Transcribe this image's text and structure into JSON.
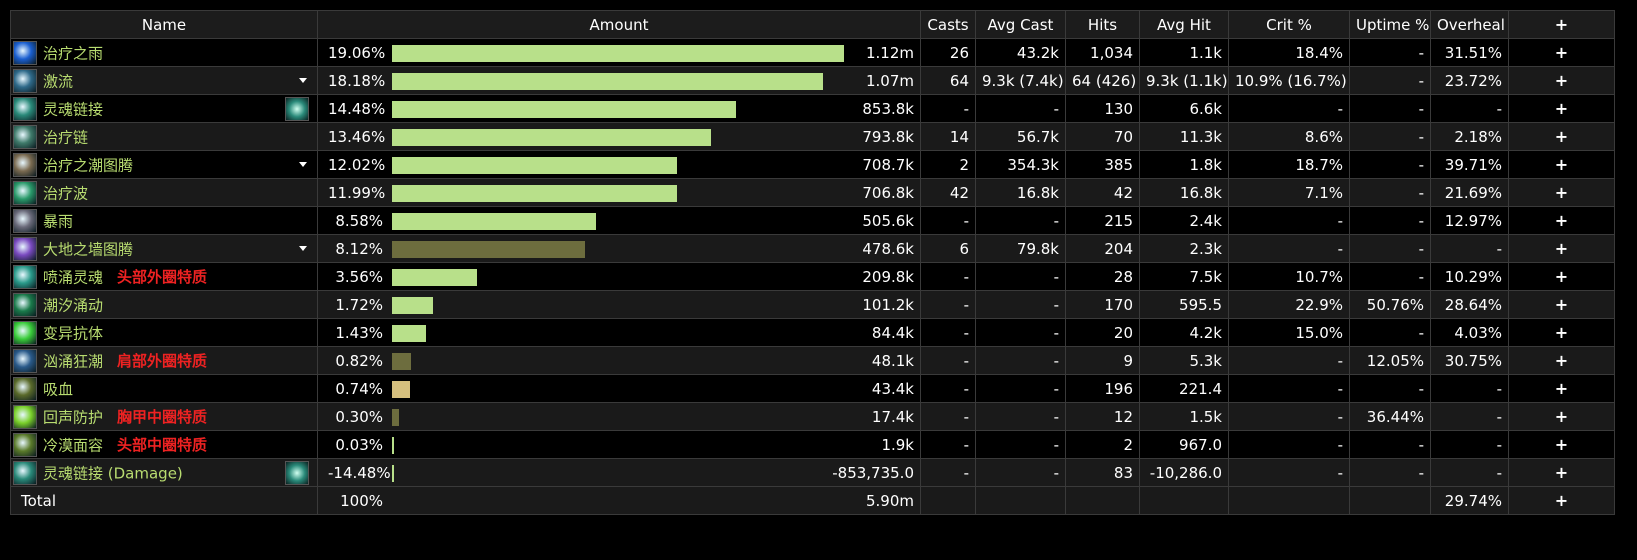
{
  "columns": {
    "name": "Name",
    "amount": "Amount",
    "casts": "Casts",
    "avg_cast": "Avg Cast",
    "hits": "Hits",
    "avg_hit": "Avg Hit",
    "crit": "Crit %",
    "uptime": "Uptime %",
    "overheal": "Overheal",
    "expand": "+"
  },
  "rows": [
    {
      "name": "治疗之雨",
      "tag": "",
      "caret": false,
      "extra_icon": false,
      "icon_color": "#1b5fd0",
      "pct": "19.06%",
      "bar_fraction": 1.0,
      "bar_color": "#b8e08a",
      "amount": "1.12m",
      "casts": "26",
      "avg_cast": "43.2k",
      "hits": "1,034",
      "avg_hit": "1.1k",
      "crit": "18.4%",
      "uptime": "-",
      "overheal": "31.51%",
      "expand": "+"
    },
    {
      "name": "激流",
      "tag": "",
      "caret": true,
      "extra_icon": false,
      "icon_color": "#2f6a8a",
      "pct": "18.18%",
      "bar_fraction": 0.954,
      "bar_color": "#b8e08a",
      "amount": "1.07m",
      "casts": "64",
      "avg_cast": "9.3k (7.4k)",
      "hits": "64 (426)",
      "avg_hit": "9.3k (1.1k)",
      "crit": "10.9% (16.7%)",
      "uptime": "-",
      "overheal": "23.72%",
      "expand": "+"
    },
    {
      "name": "灵魂链接",
      "tag": "",
      "caret": false,
      "extra_icon": true,
      "icon_color": "#2a8a7a",
      "pct": "14.48%",
      "bar_fraction": 0.76,
      "bar_color": "#b8e08a",
      "amount": "853.8k",
      "casts": "-",
      "avg_cast": "-",
      "hits": "130",
      "avg_hit": "6.6k",
      "crit": "-",
      "uptime": "-",
      "overheal": "-",
      "expand": "+"
    },
    {
      "name": "治疗链",
      "tag": "",
      "caret": false,
      "extra_icon": false,
      "icon_color": "#3f7a6a",
      "pct": "13.46%",
      "bar_fraction": 0.706,
      "bar_color": "#b8e08a",
      "amount": "793.8k",
      "casts": "14",
      "avg_cast": "56.7k",
      "hits": "70",
      "avg_hit": "11.3k",
      "crit": "8.6%",
      "uptime": "-",
      "overheal": "2.18%",
      "expand": "+"
    },
    {
      "name": "治疗之潮图腾",
      "tag": "",
      "caret": true,
      "extra_icon": false,
      "icon_color": "#7a6a50",
      "pct": "12.02%",
      "bar_fraction": 0.631,
      "bar_color": "#b8e08a",
      "amount": "708.7k",
      "casts": "2",
      "avg_cast": "354.3k",
      "hits": "385",
      "avg_hit": "1.8k",
      "crit": "18.7%",
      "uptime": "-",
      "overheal": "39.71%",
      "expand": "+"
    },
    {
      "name": "治疗波",
      "tag": "",
      "caret": false,
      "extra_icon": false,
      "icon_color": "#2a9a6a",
      "pct": "11.99%",
      "bar_fraction": 0.631,
      "bar_color": "#b8e08a",
      "amount": "706.8k",
      "casts": "42",
      "avg_cast": "16.8k",
      "hits": "42",
      "avg_hit": "16.8k",
      "crit": "7.1%",
      "uptime": "-",
      "overheal": "21.69%",
      "expand": "+"
    },
    {
      "name": "暴雨",
      "tag": "",
      "caret": false,
      "extra_icon": false,
      "icon_color": "#6a6a7a",
      "pct": "8.58%",
      "bar_fraction": 0.451,
      "bar_color": "#b8e08a",
      "amount": "505.6k",
      "casts": "-",
      "avg_cast": "-",
      "hits": "215",
      "avg_hit": "2.4k",
      "crit": "-",
      "uptime": "-",
      "overheal": "12.97%",
      "expand": "+"
    },
    {
      "name": "大地之墙图腾",
      "tag": "",
      "caret": true,
      "extra_icon": false,
      "icon_color": "#7a4ac0",
      "pct": "8.12%",
      "bar_fraction": 0.427,
      "bar_color": "#6d6d3e",
      "amount": "478.6k",
      "casts": "6",
      "avg_cast": "79.8k",
      "hits": "204",
      "avg_hit": "2.3k",
      "crit": "-",
      "uptime": "-",
      "overheal": "-",
      "expand": "+"
    },
    {
      "name": "喷涌灵魂",
      "tag": "头部外圈特质",
      "caret": false,
      "extra_icon": false,
      "icon_color": "#2a9a8a",
      "pct": "3.56%",
      "bar_fraction": 0.187,
      "bar_color": "#b8e08a",
      "amount": "209.8k",
      "casts": "-",
      "avg_cast": "-",
      "hits": "28",
      "avg_hit": "7.5k",
      "crit": "10.7%",
      "uptime": "-",
      "overheal": "10.29%",
      "expand": "+"
    },
    {
      "name": "潮汐涌动",
      "tag": "",
      "caret": false,
      "extra_icon": false,
      "icon_color": "#1a7a4a",
      "pct": "1.72%",
      "bar_fraction": 0.09,
      "bar_color": "#b8e08a",
      "amount": "101.2k",
      "casts": "-",
      "avg_cast": "-",
      "hits": "170",
      "avg_hit": "595.5",
      "crit": "22.9%",
      "uptime": "50.76%",
      "overheal": "28.64%",
      "expand": "+"
    },
    {
      "name": "变异抗体",
      "tag": "",
      "caret": false,
      "extra_icon": false,
      "icon_color": "#3acc3a",
      "pct": "1.43%",
      "bar_fraction": 0.075,
      "bar_color": "#b8e08a",
      "amount": "84.4k",
      "casts": "-",
      "avg_cast": "-",
      "hits": "20",
      "avg_hit": "4.2k",
      "crit": "15.0%",
      "uptime": "-",
      "overheal": "4.03%",
      "expand": "+"
    },
    {
      "name": "汹涌狂潮",
      "tag": "肩部外圈特质",
      "caret": false,
      "extra_icon": false,
      "icon_color": "#2a5a8a",
      "pct": "0.82%",
      "bar_fraction": 0.043,
      "bar_color": "#6d6d3e",
      "amount": "48.1k",
      "casts": "-",
      "avg_cast": "-",
      "hits": "9",
      "avg_hit": "5.3k",
      "crit": "-",
      "uptime": "12.05%",
      "overheal": "30.75%",
      "expand": "+"
    },
    {
      "name": "吸血",
      "tag": "",
      "caret": false,
      "extra_icon": false,
      "icon_color": "#5a6a2a",
      "pct": "0.74%",
      "bar_fraction": 0.039,
      "bar_color": "#d6c07e",
      "amount": "43.4k",
      "casts": "-",
      "avg_cast": "-",
      "hits": "196",
      "avg_hit": "221.4",
      "crit": "-",
      "uptime": "-",
      "overheal": "-",
      "expand": "+"
    },
    {
      "name": "回声防护",
      "tag": "胸甲中圈特质",
      "caret": false,
      "extra_icon": false,
      "icon_color": "#7ad02a",
      "pct": "0.30%",
      "bar_fraction": 0.016,
      "bar_color": "#6d6d3e",
      "amount": "17.4k",
      "casts": "-",
      "avg_cast": "-",
      "hits": "12",
      "avg_hit": "1.5k",
      "crit": "-",
      "uptime": "36.44%",
      "overheal": "-",
      "expand": "+"
    },
    {
      "name": "冷漠面容",
      "tag": "头部中圈特质",
      "caret": false,
      "extra_icon": false,
      "icon_color": "#5a7a2a",
      "pct": "0.03%",
      "bar_fraction": 0.002,
      "bar_color": "#b8e08a",
      "amount": "1.9k",
      "casts": "-",
      "avg_cast": "-",
      "hits": "2",
      "avg_hit": "967.0",
      "crit": "-",
      "uptime": "-",
      "overheal": "-",
      "expand": "+"
    },
    {
      "name": "灵魂链接 (Damage)",
      "tag": "",
      "caret": false,
      "extra_icon": true,
      "icon_color": "#2a8a7a",
      "pct": "-14.48%",
      "bar_fraction": 0.002,
      "bar_color": "#b8e08a",
      "amount": "-853,735.0",
      "casts": "-",
      "avg_cast": "-",
      "hits": "83",
      "avg_hit": "-10,286.0",
      "crit": "-",
      "uptime": "-",
      "overheal": "-",
      "expand": "+"
    }
  ],
  "total": {
    "name": "Total",
    "pct": "100%",
    "amount": "5.90m",
    "overheal": "29.74%",
    "expand": "+"
  }
}
